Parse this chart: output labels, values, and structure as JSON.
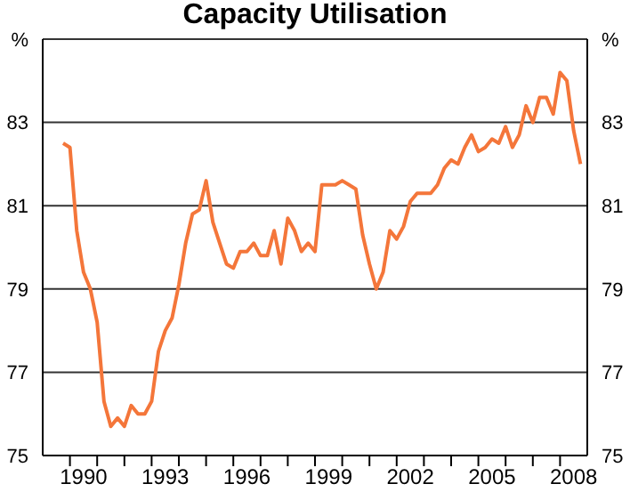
{
  "chart_data": {
    "type": "line",
    "title": "Capacity Utilisation",
    "x": [
      1989.75,
      1990,
      1990.25,
      1990.5,
      1990.75,
      1991,
      1991.25,
      1991.5,
      1991.75,
      1992,
      1992.25,
      1992.5,
      1992.75,
      1993,
      1993.25,
      1993.5,
      1993.75,
      1994,
      1994.25,
      1994.5,
      1994.75,
      1995,
      1995.25,
      1995.5,
      1995.75,
      1996,
      1996.25,
      1996.5,
      1996.75,
      1997,
      1997.25,
      1997.5,
      1997.75,
      1998,
      1998.25,
      1998.5,
      1998.75,
      1999,
      1999.25,
      1999.5,
      1999.75,
      2000,
      2000.25,
      2000.5,
      2000.75,
      2001,
      2001.25,
      2001.5,
      2001.75,
      2002,
      2002.25,
      2002.5,
      2002.75,
      2003,
      2003.25,
      2003.5,
      2003.75,
      2004,
      2004.25,
      2004.5,
      2004.75,
      2005,
      2005.25,
      2005.5,
      2005.75,
      2006,
      2006.25,
      2006.5,
      2006.75,
      2007,
      2007.25,
      2007.5,
      2007.75,
      2008,
      2008.25,
      2008.5,
      2008.75
    ],
    "series": [
      {
        "color": "#f4763a",
        "values": [
          82.5,
          82.4,
          80.4,
          79.4,
          79.0,
          78.2,
          76.3,
          75.7,
          75.9,
          75.7,
          76.2,
          76.0,
          76.0,
          76.3,
          77.5,
          78.0,
          78.3,
          79.1,
          80.1,
          80.8,
          80.9,
          81.6,
          80.6,
          80.1,
          79.6,
          79.5,
          79.9,
          79.9,
          80.1,
          79.8,
          79.8,
          80.4,
          79.6,
          80.7,
          80.4,
          79.9,
          80.1,
          79.9,
          81.5,
          81.5,
          81.5,
          81.6,
          81.5,
          81.4,
          80.3,
          79.6,
          79.0,
          79.4,
          80.4,
          80.2,
          80.5,
          81.1,
          81.3,
          81.3,
          81.3,
          81.5,
          81.9,
          82.1,
          82.0,
          82.4,
          82.7,
          82.3,
          82.4,
          82.6,
          82.5,
          82.9,
          82.4,
          82.7,
          83.4,
          83.0,
          83.6,
          83.6,
          83.2,
          84.2,
          84.0,
          82.8,
          82.0
        ]
      }
    ],
    "xlim": [
      1989,
      2009
    ],
    "xticks": [
      {
        "value": 1990,
        "label": null
      },
      {
        "value": 1990.5,
        "label": "1990"
      },
      {
        "value": 1991,
        "label": null
      },
      {
        "value": 1992,
        "label": null
      },
      {
        "value": 1993,
        "label": null
      },
      {
        "value": 1993.5,
        "label": "1993"
      },
      {
        "value": 1994,
        "label": null
      },
      {
        "value": 1995,
        "label": null
      },
      {
        "value": 1996,
        "label": null
      },
      {
        "value": 1996.5,
        "label": "1996"
      },
      {
        "value": 1997,
        "label": null
      },
      {
        "value": 1998,
        "label": null
      },
      {
        "value": 1999,
        "label": null
      },
      {
        "value": 1999.5,
        "label": "1999"
      },
      {
        "value": 2000,
        "label": null
      },
      {
        "value": 2001,
        "label": null
      },
      {
        "value": 2002,
        "label": null
      },
      {
        "value": 2002.5,
        "label": "2002"
      },
      {
        "value": 2003,
        "label": null
      },
      {
        "value": 2004,
        "label": null
      },
      {
        "value": 2005,
        "label": null
      },
      {
        "value": 2005.5,
        "label": "2005"
      },
      {
        "value": 2006,
        "label": null
      },
      {
        "value": 2007,
        "label": null
      },
      {
        "value": 2008,
        "label": null
      },
      {
        "value": 2008.5,
        "label": "2008"
      }
    ],
    "ylim": [
      75,
      85
    ],
    "yticks": [
      75,
      77,
      79,
      81,
      83,
      {
        "value": 85,
        "label": "%"
      }
    ],
    "y2lim": [
      75,
      85
    ],
    "y2ticks": [
      75,
      77,
      79,
      81,
      83,
      {
        "value": 85,
        "label": "%"
      }
    ],
    "grid": "y",
    "legend": false,
    "marker": "none",
    "line_style": "solid"
  }
}
